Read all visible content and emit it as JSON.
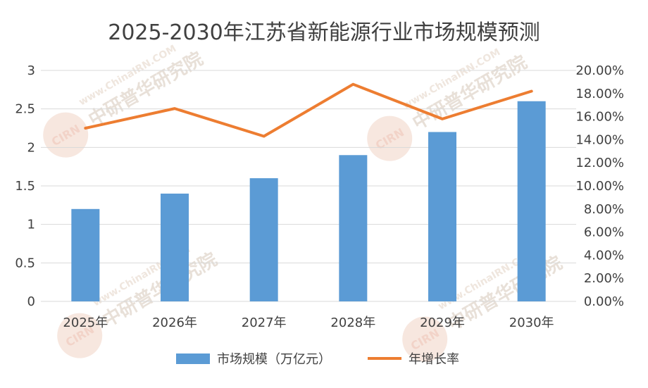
{
  "chart_data": {
    "type": "bar",
    "title": "2025-2030年江苏省新能源行业市场规模预测",
    "categories": [
      "2025年",
      "2026年",
      "2027年",
      "2028年",
      "2029年",
      "2030年"
    ],
    "series": [
      {
        "name": "市场规模（万亿元）",
        "type": "bar",
        "axis": "left",
        "color": "#5b9bd5",
        "values": [
          1.2,
          1.4,
          1.6,
          1.9,
          2.2,
          2.6
        ]
      },
      {
        "name": "年增长率",
        "type": "line",
        "axis": "right",
        "color": "#ed7d31",
        "values": [
          0.15,
          0.167,
          0.143,
          0.188,
          0.158,
          0.182
        ]
      }
    ],
    "y_left": {
      "min": 0,
      "max": 3,
      "ticks": [
        "0",
        "0.5",
        "1",
        "1.5",
        "2",
        "2.5",
        "3"
      ]
    },
    "y_right": {
      "min": 0,
      "max": 0.2,
      "ticks": [
        "0.00%",
        "2.00%",
        "4.00%",
        "6.00%",
        "8.00%",
        "10.00%",
        "12.00%",
        "14.00%",
        "16.00%",
        "18.00%",
        "20.00%"
      ]
    },
    "grid": true,
    "legend_position": "bottom"
  },
  "watermark": {
    "text": "中研普华研究院",
    "url": "www.ChinaIRN.COM",
    "logo": "CIRN"
  }
}
